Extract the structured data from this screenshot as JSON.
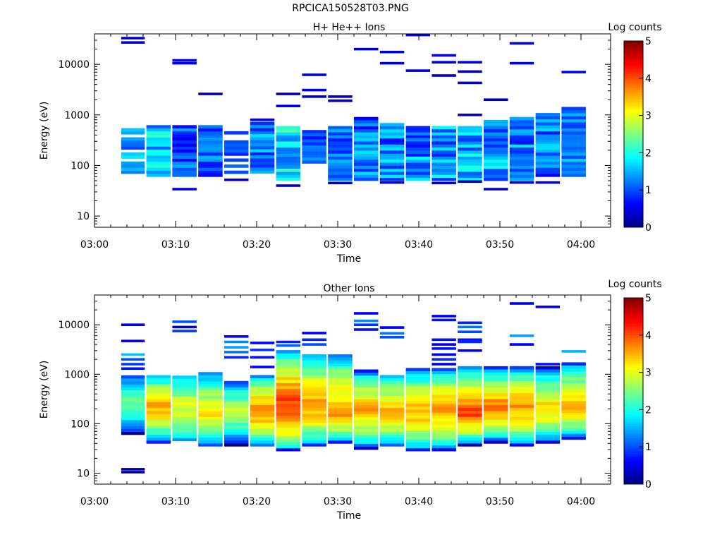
{
  "figure_title": "RPCICA150528T03.PNG",
  "chart_data": [
    {
      "type": "heatmap",
      "title": "H+ He++ Ions",
      "xlabel": "Time",
      "ylabel": "Energy (eV)",
      "x_ticks": [
        "03:00",
        "03:10",
        "03:20",
        "03:30",
        "03:40",
        "03:50",
        "04:00"
      ],
      "xlim": [
        "03:00",
        "04:00"
      ],
      "y_scale": "log",
      "ylim": [
        6,
        40000
      ],
      "y_ticks": [
        10,
        100,
        1000,
        10000
      ],
      "colorbar": {
        "label": "Log counts",
        "range": [
          0,
          5
        ],
        "ticks": [
          0,
          1,
          2,
          3,
          4,
          5
        ]
      },
      "time_bins_min": [
        [
          3.3,
          6.2
        ],
        [
          6.4,
          9.4
        ],
        [
          9.6,
          12.6
        ],
        [
          12.8,
          15.8
        ],
        [
          16.0,
          19.0
        ],
        [
          19.2,
          22.2
        ],
        [
          22.4,
          25.4
        ],
        [
          25.6,
          28.6
        ],
        [
          28.8,
          31.8
        ],
        [
          32.0,
          35.0
        ],
        [
          35.2,
          38.2
        ],
        [
          38.4,
          41.4
        ],
        [
          41.6,
          44.6
        ],
        [
          44.8,
          47.8
        ],
        [
          48.0,
          51.0
        ],
        [
          51.2,
          54.2
        ],
        [
          54.4,
          57.4
        ],
        [
          57.6,
          60.6
        ]
      ],
      "bands": [
        {
          "bin": 1,
          "e_min": 60,
          "e_max": 500,
          "level_min": 0.8,
          "level_max": 1.8,
          "pattern": "sparse"
        },
        {
          "bin": 2,
          "e_min": 60,
          "e_max": 600,
          "level_min": 1.0,
          "level_max": 2.2,
          "pattern": "dense"
        },
        {
          "bin": 3,
          "e_min": 60,
          "e_max": 600,
          "level_min": 0.5,
          "level_max": 1.5,
          "pattern": "dense"
        },
        {
          "bin": 4,
          "e_min": 60,
          "e_max": 550,
          "level_min": 0.6,
          "level_max": 1.6,
          "pattern": "dense"
        },
        {
          "bin": 5,
          "e_min": 60,
          "e_max": 450,
          "level_min": 0.6,
          "level_max": 1.3,
          "pattern": "sparse"
        },
        {
          "bin": 6,
          "e_min": 70,
          "e_max": 700,
          "level_min": 0.7,
          "level_max": 1.8,
          "pattern": "dense"
        },
        {
          "bin": 7,
          "e_min": 50,
          "e_max": 600,
          "level_min": 1.0,
          "level_max": 2.3,
          "pattern": "dense"
        },
        {
          "bin": 8,
          "e_min": 110,
          "e_max": 500,
          "level_min": 0.5,
          "level_max": 1.4,
          "pattern": "dense"
        },
        {
          "bin": 9,
          "e_min": 50,
          "e_max": 600,
          "level_min": 0.6,
          "level_max": 1.6,
          "pattern": "dense"
        },
        {
          "bin": 10,
          "e_min": 50,
          "e_max": 800,
          "level_min": 0.6,
          "level_max": 1.8,
          "pattern": "dense"
        },
        {
          "bin": 11,
          "e_min": 50,
          "e_max": 650,
          "level_min": 0.5,
          "level_max": 1.9,
          "pattern": "dense"
        },
        {
          "bin": 12,
          "e_min": 50,
          "e_max": 600,
          "level_min": 0.7,
          "level_max": 1.9,
          "pattern": "dense"
        },
        {
          "bin": 13,
          "e_min": 50,
          "e_max": 550,
          "level_min": 0.6,
          "level_max": 2.0,
          "pattern": "dense"
        },
        {
          "bin": 14,
          "e_min": 50,
          "e_max": 550,
          "level_min": 0.8,
          "level_max": 2.1,
          "pattern": "dense"
        },
        {
          "bin": 15,
          "e_min": 50,
          "e_max": 700,
          "level_min": 0.8,
          "level_max": 2.0,
          "pattern": "dense"
        },
        {
          "bin": 16,
          "e_min": 50,
          "e_max": 900,
          "level_min": 0.7,
          "level_max": 1.8,
          "pattern": "dense"
        },
        {
          "bin": 17,
          "e_min": 60,
          "e_max": 1000,
          "level_min": 0.6,
          "level_max": 1.8,
          "pattern": "dense"
        },
        {
          "bin": 18,
          "e_min": 60,
          "e_max": 1300,
          "level_min": 0.8,
          "level_max": 1.7,
          "pattern": "dense"
        }
      ],
      "isolated": [
        [
          1,
          33000,
          0.4
        ],
        [
          1,
          27000,
          0.4
        ],
        [
          3,
          12000,
          0.6
        ],
        [
          3,
          10500,
          0.5
        ],
        [
          3,
          34,
          0.5
        ],
        [
          4,
          2600,
          0.4
        ],
        [
          5,
          52,
          0.4
        ],
        [
          6,
          800,
          0.5
        ],
        [
          7,
          2600,
          0.4
        ],
        [
          7,
          1500,
          0.5
        ],
        [
          7,
          40,
          0.4
        ],
        [
          8,
          6200,
          0.4
        ],
        [
          8,
          3100,
          0.5
        ],
        [
          8,
          2300,
          0.4
        ],
        [
          9,
          2300,
          0.4
        ],
        [
          9,
          1900,
          0.4
        ],
        [
          9,
          45,
          0.3
        ],
        [
          10,
          20000,
          0.4
        ],
        [
          11,
          17500,
          0.4
        ],
        [
          11,
          10500,
          0.4
        ],
        [
          11,
          46,
          0.4
        ],
        [
          12,
          38000,
          0.5
        ],
        [
          12,
          7500,
          0.4
        ],
        [
          13,
          15000,
          0.5
        ],
        [
          13,
          11000,
          0.4
        ],
        [
          13,
          6000,
          0.4
        ],
        [
          13,
          45,
          0.4
        ],
        [
          14,
          11000,
          0.4
        ],
        [
          14,
          7200,
          0.3
        ],
        [
          14,
          4300,
          0.4
        ],
        [
          14,
          1000,
          0.4
        ],
        [
          14,
          48,
          0.3
        ],
        [
          15,
          2000,
          0.4
        ],
        [
          15,
          34,
          0.4
        ],
        [
          16,
          26000,
          0.5
        ],
        [
          16,
          10500,
          0.5
        ],
        [
          16,
          46,
          0.4
        ],
        [
          17,
          46,
          0.4
        ],
        [
          18,
          7000,
          0.6
        ]
      ]
    },
    {
      "type": "heatmap",
      "title": "Other Ions",
      "xlabel": "Time",
      "ylabel": "Energy (eV)",
      "x_ticks": [
        "03:00",
        "03:10",
        "03:20",
        "03:30",
        "03:40",
        "03:50",
        "04:00"
      ],
      "xlim": [
        "03:00",
        "04:00"
      ],
      "y_scale": "log",
      "ylim": [
        6,
        40000
      ],
      "y_ticks": [
        10,
        100,
        1000,
        10000
      ],
      "colorbar": {
        "label": "Log counts",
        "range": [
          0,
          5
        ],
        "ticks": [
          0,
          1,
          2,
          3,
          4,
          5
        ]
      },
      "time_bins_min": [
        [
          3.3,
          6.2
        ],
        [
          6.4,
          9.4
        ],
        [
          9.6,
          12.6
        ],
        [
          12.8,
          15.8
        ],
        [
          16.0,
          19.0
        ],
        [
          19.2,
          22.2
        ],
        [
          22.4,
          25.4
        ],
        [
          25.6,
          28.6
        ],
        [
          28.8,
          31.8
        ],
        [
          32.0,
          35.0
        ],
        [
          35.2,
          38.2
        ],
        [
          38.4,
          41.4
        ],
        [
          41.6,
          44.6
        ],
        [
          44.8,
          47.8
        ],
        [
          48.0,
          51.0
        ],
        [
          51.2,
          54.2
        ],
        [
          54.4,
          57.4
        ],
        [
          57.6,
          60.6
        ]
      ],
      "bands": [
        {
          "bin": 1,
          "e_min": 60,
          "e_max": 950,
          "peak_e": 250,
          "peak": 2.5,
          "low_e": 30,
          "low": 0.1
        },
        {
          "bin": 2,
          "e_min": 40,
          "e_max": 950,
          "peak_e": 200,
          "peak": 3.6,
          "low_e": 40,
          "low": 0.6
        },
        {
          "bin": 3,
          "e_min": 45,
          "e_max": 900,
          "peak_e": 200,
          "peak": 3.0,
          "low_e": 45,
          "low": 1.2
        },
        {
          "bin": 4,
          "e_min": 35,
          "e_max": 1000,
          "peak_e": 150,
          "peak": 3.2,
          "low_e": 35,
          "low": 0.8
        },
        {
          "bin": 5,
          "e_min": 35,
          "e_max": 700,
          "peak_e": 180,
          "peak": 2.9,
          "low_e": 35,
          "low": 0.1
        },
        {
          "bin": 6,
          "e_min": 35,
          "e_max": 850,
          "peak_e": 170,
          "peak": 3.8,
          "low_e": 35,
          "low": 1.0
        },
        {
          "bin": 7,
          "e_min": 28,
          "e_max": 3000,
          "peak_e": 200,
          "peak": 4.2,
          "low_e": 28,
          "low": 0.8
        },
        {
          "bin": 8,
          "e_min": 35,
          "e_max": 2500,
          "peak_e": 200,
          "peak": 3.7,
          "low_e": 35,
          "low": 0.7
        },
        {
          "bin": 9,
          "e_min": 40,
          "e_max": 2300,
          "peak_e": 150,
          "peak": 3.7,
          "low_e": 40,
          "low": 0.9
        },
        {
          "bin": 10,
          "e_min": 30,
          "e_max": 1100,
          "peak_e": 200,
          "peak": 3.6,
          "low_e": 30,
          "low": 0.5
        },
        {
          "bin": 11,
          "e_min": 35,
          "e_max": 900,
          "peak_e": 170,
          "peak": 3.5,
          "low_e": 35,
          "low": 0.9
        },
        {
          "bin": 12,
          "e_min": 28,
          "e_max": 1200,
          "peak_e": 160,
          "peak": 3.6,
          "low_e": 28,
          "low": 0.7
        },
        {
          "bin": 13,
          "e_min": 28,
          "e_max": 1200,
          "peak_e": 180,
          "peak": 3.7,
          "low_e": 28,
          "low": 0.7
        },
        {
          "bin": 14,
          "e_min": 35,
          "e_max": 1400,
          "peak_e": 150,
          "peak": 4.1,
          "low_e": 35,
          "low": 0.3
        },
        {
          "bin": 15,
          "e_min": 40,
          "e_max": 1300,
          "peak_e": 200,
          "peak": 3.9,
          "low_e": 40,
          "low": 0.3
        },
        {
          "bin": 16,
          "e_min": 35,
          "e_max": 1300,
          "peak_e": 200,
          "peak": 3.7,
          "low_e": 35,
          "low": 0.6
        },
        {
          "bin": 17,
          "e_min": 40,
          "e_max": 1300,
          "peak_e": 180,
          "peak": 3.4,
          "low_e": 40,
          "low": 0.3
        },
        {
          "bin": 18,
          "e_min": 48,
          "e_max": 1600,
          "peak_e": 200,
          "peak": 3.6,
          "low_e": 48,
          "low": 0.5
        }
      ],
      "isolated": [
        [
          1,
          10000,
          0.5
        ],
        [
          1,
          4700,
          0.6
        ],
        [
          1,
          2500,
          1.6
        ],
        [
          1,
          2000,
          1.0
        ],
        [
          1,
          1600,
          0.9
        ],
        [
          1,
          1300,
          0.7
        ],
        [
          1,
          12,
          0.2
        ],
        [
          1,
          10.5,
          0.2
        ],
        [
          3,
          11500,
          1.0
        ],
        [
          3,
          9000,
          0.4
        ],
        [
          3,
          7500,
          0.9
        ],
        [
          5,
          5800,
          0.6
        ],
        [
          5,
          4500,
          1.3
        ],
        [
          5,
          3500,
          1.4
        ],
        [
          5,
          2800,
          1.2
        ],
        [
          5,
          2200,
          0.8
        ],
        [
          6,
          4300,
          0.6
        ],
        [
          6,
          3100,
          0.9
        ],
        [
          6,
          2200,
          0.7
        ],
        [
          6,
          1400,
          0.6
        ],
        [
          7,
          4500,
          0.8
        ],
        [
          7,
          3800,
          1.1
        ],
        [
          8,
          6800,
          0.6
        ],
        [
          8,
          5000,
          0.8
        ],
        [
          8,
          4000,
          1.0
        ],
        [
          10,
          17000,
          0.6
        ],
        [
          10,
          12000,
          1.3
        ],
        [
          10,
          10000,
          0.9
        ],
        [
          10,
          8000,
          0.7
        ],
        [
          11,
          8800,
          0.6
        ],
        [
          11,
          6700,
          1.2
        ],
        [
          11,
          5600,
          1.0
        ],
        [
          13,
          15000,
          0.6
        ],
        [
          13,
          12500,
          0.7
        ],
        [
          13,
          5000,
          0.7
        ],
        [
          13,
          4000,
          0.5
        ],
        [
          13,
          3300,
          0.7
        ],
        [
          13,
          2500,
          0.6
        ],
        [
          13,
          2000,
          0.8
        ],
        [
          13,
          1600,
          0.5
        ],
        [
          14,
          11000,
          0.8
        ],
        [
          14,
          9000,
          1.2
        ],
        [
          14,
          7200,
          1.0
        ],
        [
          14,
          5000,
          0.7
        ],
        [
          14,
          4500,
          0.8
        ],
        [
          14,
          3000,
          0.6
        ],
        [
          16,
          27000,
          0.5
        ],
        [
          16,
          6000,
          1.4
        ],
        [
          16,
          4000,
          0.6
        ],
        [
          17,
          23000,
          0.5
        ],
        [
          17,
          1600,
          0.7
        ],
        [
          18,
          2900,
          1.5
        ]
      ]
    }
  ]
}
